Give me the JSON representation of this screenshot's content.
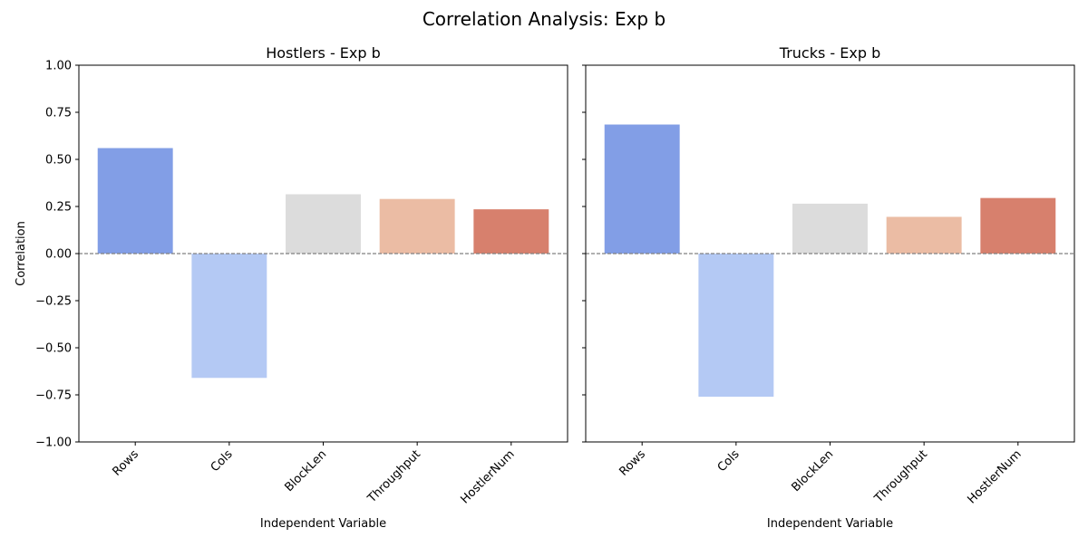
{
  "suptitle": "Correlation Analysis: Exp b",
  "chart_data": [
    {
      "type": "bar",
      "title": "Hostlers - Exp b",
      "xlabel": "Independent Variable",
      "ylabel": "Correlation",
      "ylim": [
        -1.0,
        1.0
      ],
      "yticks": [
        -1.0,
        -0.75,
        -0.5,
        -0.25,
        0.0,
        0.25,
        0.5,
        0.75,
        1.0
      ],
      "ytick_labels": [
        "−1.00",
        "−0.75",
        "−0.50",
        "−0.25",
        "0.00",
        "0.25",
        "0.50",
        "0.75",
        "1.00"
      ],
      "categories": [
        "Rows",
        "Cols",
        "BlockLen",
        "Throughput",
        "HostlerNum"
      ],
      "values": [
        0.56,
        -0.66,
        0.315,
        0.29,
        0.235
      ],
      "colors": [
        "#829ee6",
        "#b4c9f4",
        "#dcdcdc",
        "#ebbca4",
        "#d7806d"
      ],
      "reference_line": 0.0,
      "grid": false
    },
    {
      "type": "bar",
      "title": "Trucks - Exp b",
      "xlabel": "Independent Variable",
      "ylabel": "",
      "ylim": [
        -1.0,
        1.0
      ],
      "yticks": [
        -1.0,
        -0.75,
        -0.5,
        -0.25,
        0.0,
        0.25,
        0.5,
        0.75,
        1.0
      ],
      "ytick_labels": [],
      "categories": [
        "Rows",
        "Cols",
        "BlockLen",
        "Throughput",
        "HostlerNum"
      ],
      "values": [
        0.685,
        -0.76,
        0.265,
        0.195,
        0.295
      ],
      "colors": [
        "#829ee6",
        "#b4c9f4",
        "#dcdcdc",
        "#ebbca4",
        "#d7806d"
      ],
      "reference_line": 0.0,
      "grid": false
    }
  ]
}
